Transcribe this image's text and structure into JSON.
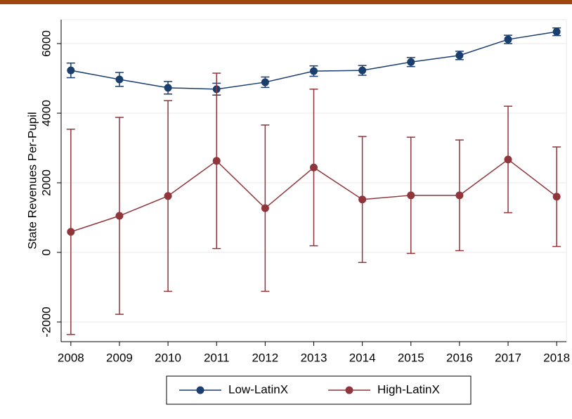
{
  "chart_data": {
    "type": "line",
    "y_label": "State Revenues Per-Pupil",
    "x": [
      2008,
      2009,
      2010,
      2011,
      2012,
      2013,
      2014,
      2015,
      2016,
      2017,
      2018
    ],
    "xlim": [
      2007.8,
      2018.2
    ],
    "xticks": [
      2008,
      2009,
      2010,
      2011,
      2012,
      2013,
      2014,
      2015,
      2016,
      2017,
      2018
    ],
    "ylim": [
      -2566,
      6687
    ],
    "yticks": [
      -2000,
      0,
      2000,
      4000,
      6000
    ],
    "grid": true,
    "legend": "bottom",
    "series": [
      {
        "name": "Low-LatinX",
        "color": "#1a3e6e",
        "values": [
          5230,
          4970,
          4730,
          4690,
          4890,
          5210,
          5230,
          5470,
          5660,
          6120,
          6340
        ],
        "errors": [
          210,
          200,
          180,
          170,
          150,
          150,
          140,
          130,
          120,
          120,
          110
        ]
      },
      {
        "name": "High-LatinX",
        "color": "#90353b",
        "values": [
          590,
          1050,
          1620,
          2630,
          1270,
          2440,
          1520,
          1640,
          1640,
          2670,
          1600
        ],
        "errors": [
          2950,
          2830,
          2740,
          2520,
          2390,
          2250,
          1810,
          1670,
          1590,
          1530,
          1430
        ]
      }
    ]
  }
}
